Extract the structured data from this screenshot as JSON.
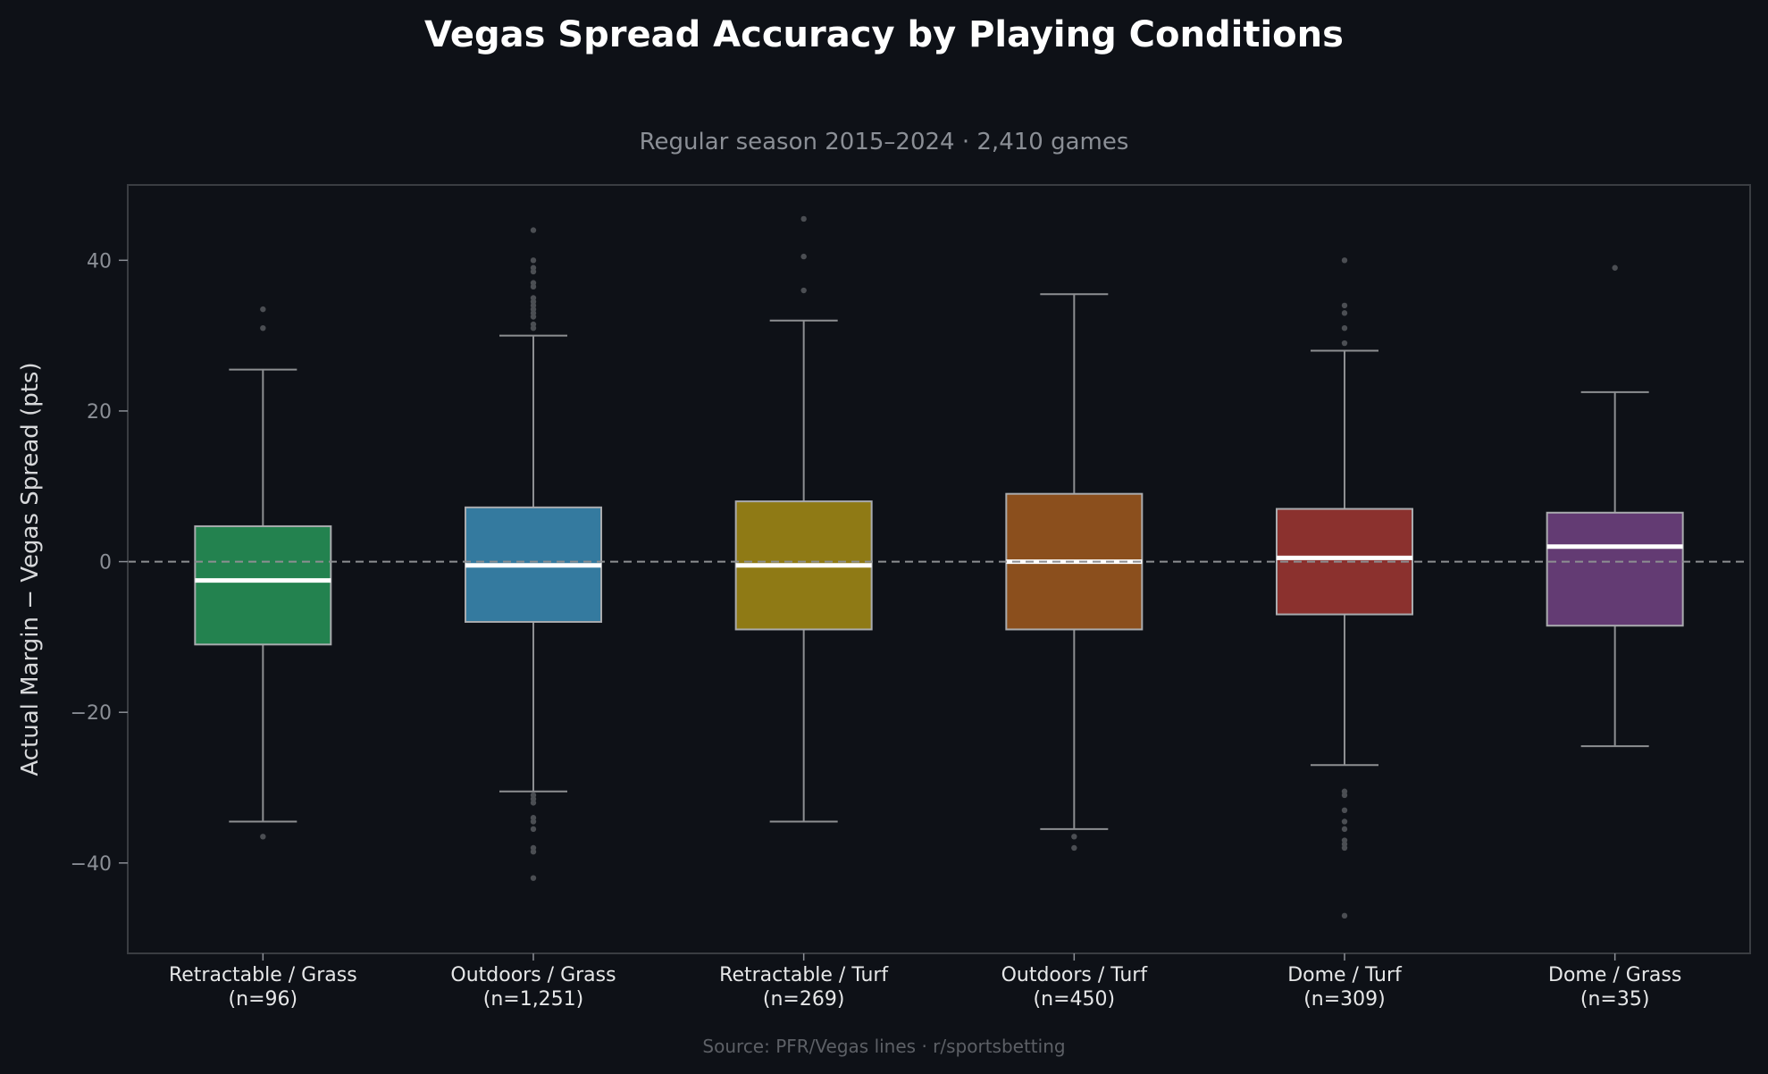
{
  "chart_data": {
    "type": "box",
    "title": "Vegas Spread Accuracy by Playing Conditions",
    "subtitle": "Regular season 2015–2024 · 2,410 games",
    "ylabel": "Actual Margin − Vegas Spread (pts)",
    "xlabel": "",
    "source": "Source: PFR/Vegas lines · r/sportsbetting",
    "ylim": [
      -52,
      50
    ],
    "yticks": [
      40,
      20,
      0,
      -20,
      -40
    ],
    "ytick_labels": [
      "40",
      "20",
      "0",
      "−20",
      "−40"
    ],
    "reference_line": 0,
    "grid": false,
    "categories": [
      {
        "label": "Retractable / Grass",
        "n_label": "(n=96)",
        "color": "#23824f",
        "whisker_low": -34.5,
        "q1": -11,
        "median": -2.5,
        "q3": 4.7,
        "whisker_high": 25.5,
        "outliers": [
          33.5,
          31,
          -36.5
        ]
      },
      {
        "label": "Outdoors / Grass",
        "n_label": "(n=1,251)",
        "color": "#347a9f",
        "whisker_low": -30.5,
        "q1": -8,
        "median": -0.5,
        "q3": 7.2,
        "whisker_high": 30,
        "outliers": [
          44,
          40,
          39,
          38.5,
          37,
          36.5,
          35,
          34.5,
          34,
          33.5,
          33,
          32.5,
          31.5,
          31,
          -31,
          -31.5,
          -32,
          -34,
          -34.5,
          -35.5,
          -38,
          -38.5,
          -42
        ]
      },
      {
        "label": "Retractable / Turf",
        "n_label": "(n=269)",
        "color": "#8f7a15",
        "whisker_low": -34.5,
        "q1": -9,
        "median": -0.5,
        "q3": 8,
        "whisker_high": 32,
        "outliers": [
          45.5,
          40.5,
          36
        ]
      },
      {
        "label": "Outdoors / Turf",
        "n_label": "(n=450)",
        "color": "#8b4f1d",
        "whisker_low": -35.5,
        "q1": -9,
        "median": 0,
        "q3": 9,
        "whisker_high": 35.5,
        "outliers": [
          -36.5,
          -38
        ]
      },
      {
        "label": "Dome / Turf",
        "n_label": "(n=309)",
        "color": "#8b312e",
        "whisker_low": -27,
        "q1": -7,
        "median": 0.5,
        "q3": 7,
        "whisker_high": 28,
        "outliers": [
          40,
          34,
          33,
          31,
          29,
          -30.5,
          -31,
          -33,
          -34.5,
          -35.5,
          -37,
          -37.5,
          -38,
          -47
        ]
      },
      {
        "label": "Dome / Grass",
        "n_label": "(n=35)",
        "color": "#633b73",
        "whisker_low": -24.5,
        "q1": -8.5,
        "median": 2,
        "q3": 6.5,
        "whisker_high": 22.5,
        "outliers": [
          39
        ]
      }
    ]
  }
}
